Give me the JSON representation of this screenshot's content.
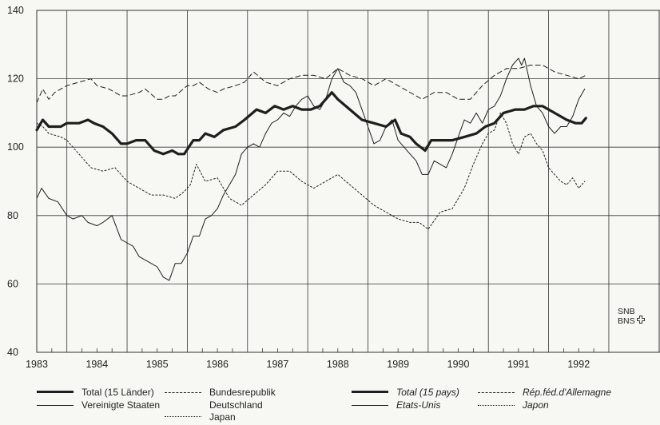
{
  "chart_data": {
    "type": "line",
    "ylim": [
      40,
      140
    ],
    "yticks": [
      "40",
      "60",
      "80",
      "100",
      "120",
      "140"
    ],
    "xlim": [
      1982.5,
      1992.85
    ],
    "xticks": [
      "1983",
      "1984",
      "1985",
      "1986",
      "1987",
      "1988",
      "1989",
      "1990",
      "1991",
      "1992"
    ],
    "grid": true,
    "legend_position": "bottom",
    "series": [
      {
        "key": "total",
        "style": "thick",
        "x": [
          1982.5,
          1982.6,
          1982.7,
          1982.8,
          1982.9,
          1983.0,
          1983.2,
          1983.35,
          1983.45,
          1983.6,
          1983.75,
          1983.9,
          1984.0,
          1984.15,
          1984.3,
          1984.45,
          1984.6,
          1984.75,
          1984.85,
          1984.95,
          1985.1,
          1985.2,
          1985.3,
          1985.45,
          1985.6,
          1985.8,
          1985.95,
          1986.15,
          1986.3,
          1986.45,
          1986.6,
          1986.75,
          1986.9,
          1987.05,
          1987.2,
          1987.4,
          1987.5,
          1987.7,
          1987.9,
          1988.1,
          1988.3,
          1988.45,
          1988.55,
          1988.7,
          1988.8,
          1988.95,
          1989.05,
          1989.2,
          1989.4,
          1989.6,
          1989.8,
          1989.95,
          1990.1,
          1990.25,
          1990.45,
          1990.6,
          1990.75,
          1990.9,
          1991.1,
          1991.3,
          1991.45,
          1991.55,
          1991.62
        ],
        "values": [
          105,
          108,
          106,
          106,
          106,
          107,
          107,
          108,
          107,
          106,
          104,
          101,
          101,
          102,
          102,
          99,
          98,
          99,
          98,
          98,
          102,
          102,
          104,
          103,
          105,
          106,
          108,
          111,
          110,
          112,
          111,
          112,
          111,
          111,
          112,
          116,
          114,
          111,
          108,
          107,
          106,
          108,
          104,
          103,
          101,
          99,
          102,
          102,
          102,
          103,
          104,
          106,
          107,
          110,
          111,
          111,
          112,
          112,
          110,
          108,
          107,
          107,
          108.5
        ]
      },
      {
        "key": "usa",
        "style": "thin",
        "x": [
          1982.5,
          1982.58,
          1982.7,
          1982.85,
          1983.0,
          1983.1,
          1983.25,
          1983.35,
          1983.5,
          1983.6,
          1983.75,
          1983.9,
          1984.0,
          1984.1,
          1984.2,
          1984.3,
          1984.4,
          1984.5,
          1984.6,
          1984.7,
          1984.8,
          1984.9,
          1985.0,
          1985.1,
          1985.2,
          1985.3,
          1985.4,
          1985.5,
          1985.6,
          1985.7,
          1985.8,
          1985.9,
          1986.0,
          1986.1,
          1986.2,
          1986.3,
          1986.4,
          1986.5,
          1986.6,
          1986.7,
          1986.8,
          1986.9,
          1987.0,
          1987.1,
          1987.2,
          1987.3,
          1987.4,
          1987.5,
          1987.6,
          1987.7,
          1987.8,
          1987.9,
          1988.0,
          1988.1,
          1988.2,
          1988.3,
          1988.4,
          1988.5,
          1988.6,
          1988.7,
          1988.8,
          1988.9,
          1989.0,
          1989.1,
          1989.2,
          1989.3,
          1989.4,
          1989.5,
          1989.6,
          1989.7,
          1989.8,
          1989.9,
          1990.0,
          1990.1,
          1990.2,
          1990.3,
          1990.4,
          1990.5,
          1990.55,
          1990.6,
          1990.7,
          1990.8,
          1990.9,
          1991.0,
          1991.1,
          1991.2,
          1991.3,
          1991.4,
          1991.5,
          1991.6
        ],
        "values": [
          85,
          88,
          85,
          84,
          80,
          79,
          80,
          78,
          77,
          78,
          80,
          73,
          72,
          71,
          68,
          67,
          66,
          65,
          62,
          61,
          66,
          66,
          69,
          74,
          74,
          79,
          80,
          82,
          86,
          89,
          92,
          98,
          100,
          101,
          100,
          104,
          107,
          108,
          110,
          109,
          112,
          114,
          115,
          112,
          111,
          114,
          120,
          123,
          119,
          118,
          116,
          111,
          106,
          101,
          102,
          106,
          108,
          102,
          100,
          98,
          96,
          92,
          92,
          96,
          95,
          94,
          98,
          103,
          108,
          107,
          110,
          107,
          111,
          112,
          115,
          120,
          124,
          126,
          124,
          126,
          118,
          112,
          110,
          106,
          104,
          106,
          106,
          109,
          114,
          117
        ]
      },
      {
        "key": "germany",
        "style": "dashed",
        "x": [
          1982.5,
          1982.6,
          1982.7,
          1982.8,
          1982.9,
          1983.0,
          1983.2,
          1983.4,
          1983.5,
          1983.7,
          1983.9,
          1984.0,
          1984.2,
          1984.3,
          1984.5,
          1984.6,
          1984.7,
          1984.8,
          1985.0,
          1985.1,
          1985.2,
          1985.35,
          1985.5,
          1985.6,
          1985.8,
          1985.95,
          1986.1,
          1986.3,
          1986.5,
          1986.7,
          1986.9,
          1987.1,
          1987.3,
          1987.5,
          1987.7,
          1987.9,
          1988.1,
          1988.3,
          1988.5,
          1988.7,
          1988.9,
          1989.1,
          1989.3,
          1989.5,
          1989.7,
          1989.9,
          1990.1,
          1990.3,
          1990.5,
          1990.7,
          1990.9,
          1991.1,
          1991.3,
          1991.5,
          1991.62
        ],
        "values": [
          113,
          117,
          114,
          116,
          117,
          118,
          119,
          120,
          118,
          117,
          115,
          115,
          116,
          117,
          114,
          114,
          115,
          115,
          118,
          118,
          119,
          117,
          116,
          117,
          118,
          119,
          122,
          119,
          118,
          120,
          121,
          121,
          120,
          123,
          121,
          120,
          118,
          120,
          118,
          116,
          114,
          116,
          116,
          114,
          114,
          118,
          121,
          123,
          123,
          124,
          124,
          122,
          121,
          120,
          121
        ]
      },
      {
        "key": "japan",
        "style": "dotted",
        "x": [
          1982.5,
          1982.6,
          1982.7,
          1982.9,
          1983.0,
          1983.2,
          1983.4,
          1983.6,
          1983.8,
          1984.0,
          1984.2,
          1984.4,
          1984.6,
          1984.8,
          1984.95,
          1985.05,
          1985.15,
          1985.3,
          1985.5,
          1985.7,
          1985.9,
          1986.1,
          1986.3,
          1986.5,
          1986.7,
          1986.9,
          1987.1,
          1987.3,
          1987.5,
          1987.7,
          1987.9,
          1988.1,
          1988.3,
          1988.5,
          1988.7,
          1988.85,
          1989.0,
          1989.2,
          1989.4,
          1989.6,
          1989.75,
          1989.9,
          1990.0,
          1990.1,
          1990.2,
          1990.3,
          1990.4,
          1990.5,
          1990.6,
          1990.7,
          1990.8,
          1990.9,
          1991.0,
          1991.1,
          1991.2,
          1991.3,
          1991.4,
          1991.5,
          1991.6
        ],
        "values": [
          107,
          106,
          104,
          103,
          102,
          98,
          94,
          93,
          94,
          90,
          88,
          86,
          86,
          85,
          87,
          89,
          95,
          90,
          91,
          85,
          83,
          86,
          89,
          93,
          93,
          90,
          88,
          90,
          92,
          89,
          86,
          83,
          81,
          79,
          78,
          78,
          76,
          81,
          82,
          88,
          95,
          101,
          104,
          105,
          110,
          107,
          101,
          98,
          103,
          104,
          101,
          99,
          94,
          92,
          90,
          89,
          91,
          88,
          90
        ]
      }
    ]
  },
  "legend": {
    "german": {
      "total": "Total (15 Länder)",
      "usa": "Vereinigte Staaten",
      "germany_line1": "Bundesrepublik",
      "germany_line2": "Deutschland",
      "japan": "Japan"
    },
    "french": {
      "total": "Total (15 pays)",
      "usa": "Etats-Unis",
      "germany": "Rép.féd.d'Allemagne",
      "japan": "Japon"
    }
  },
  "logo": {
    "line1": "SNB",
    "line2": "BNS"
  },
  "colors": {
    "line": "#1e1e1e",
    "grid": "#333333",
    "background": "#f7f7f4"
  }
}
